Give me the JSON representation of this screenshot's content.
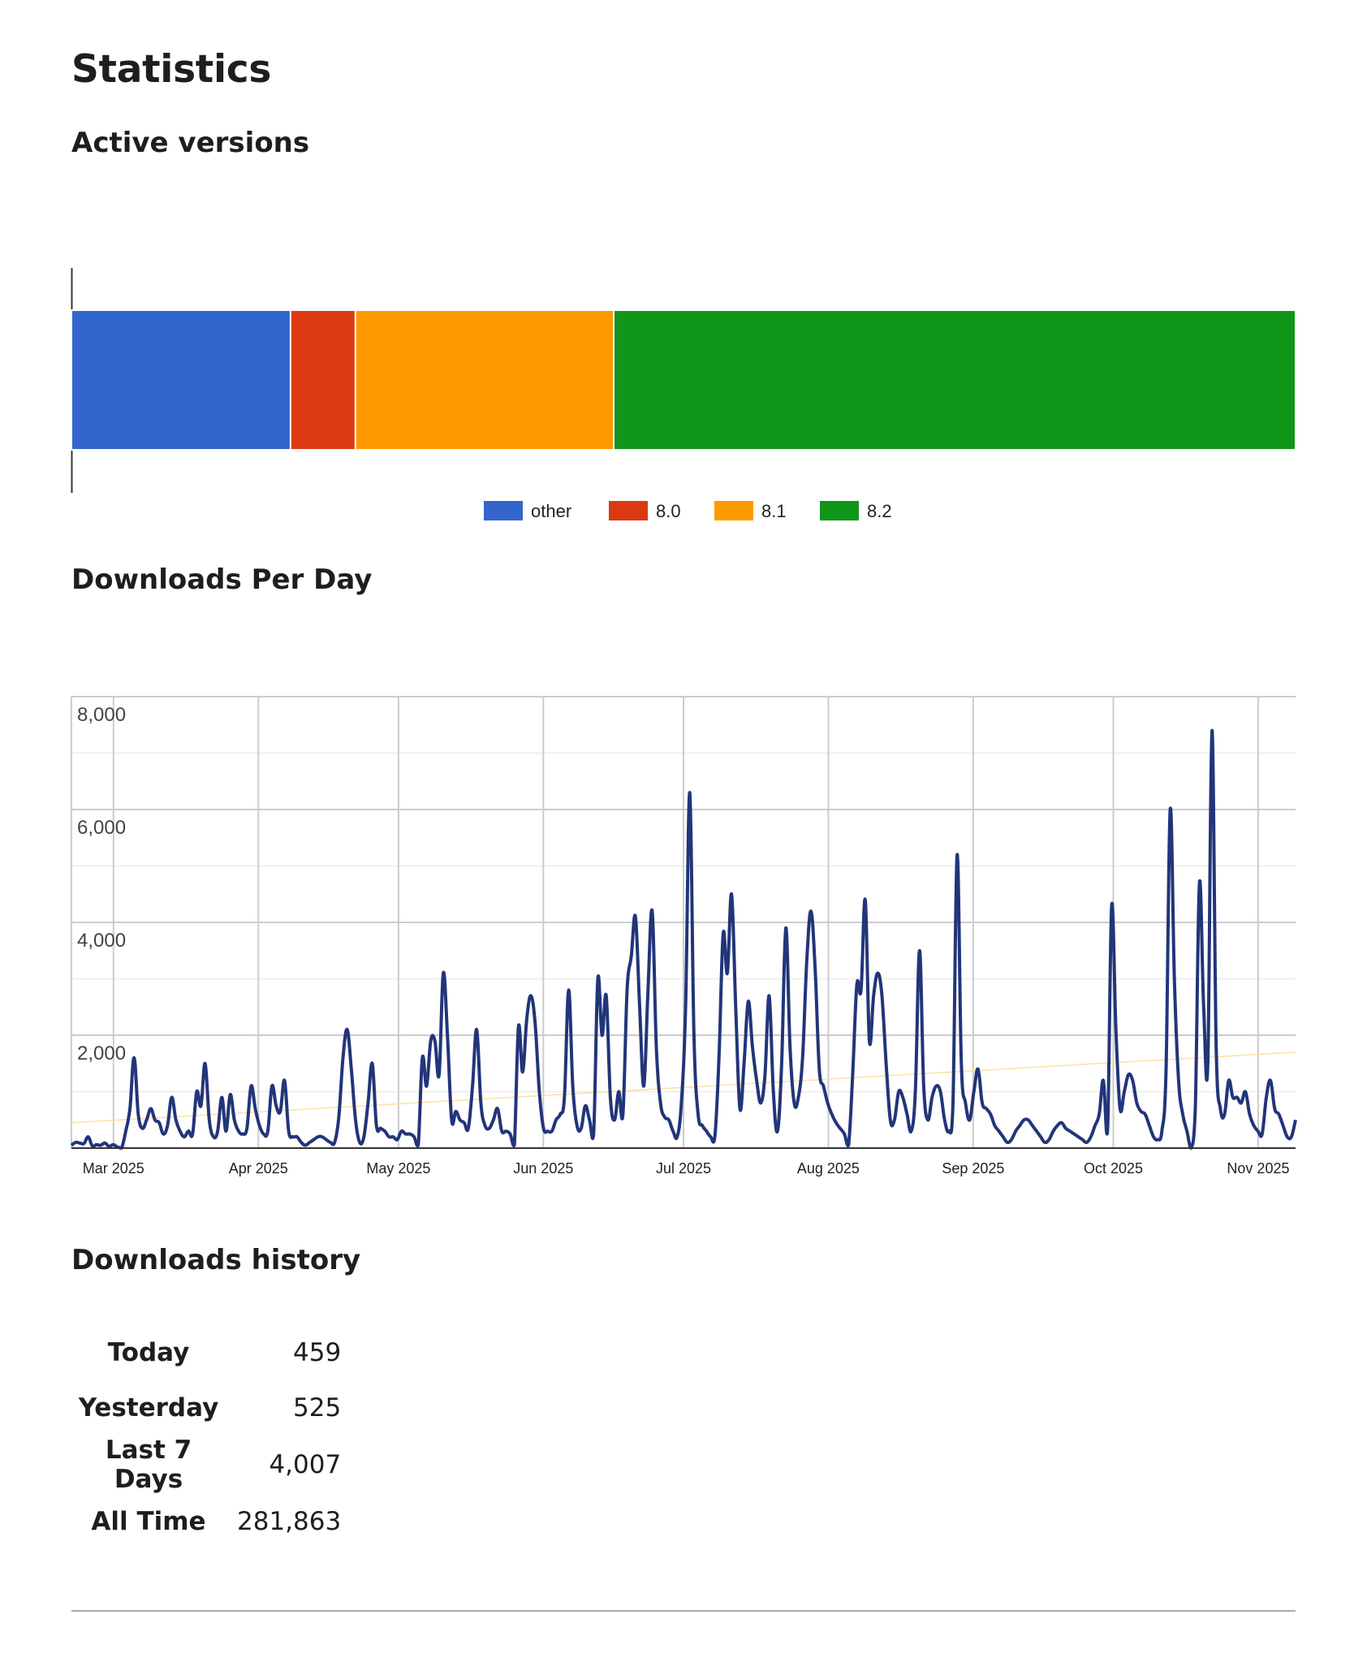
{
  "page": {
    "title": "Statistics"
  },
  "sections": {
    "versions_title": "Active versions",
    "downloads_title": "Downloads Per Day",
    "history_title": "Downloads history"
  },
  "chart_data": [
    {
      "type": "bar",
      "stacked": true,
      "orientation": "horizontal",
      "title": "",
      "categories": [
        ""
      ],
      "series": [
        {
          "name": "other",
          "color": "#3366cc",
          "values": [
            17.9
          ]
        },
        {
          "name": "8.0",
          "color": "#dc3912",
          "values": [
            5.3
          ]
        },
        {
          "name": "8.1",
          "color": "#ff9900",
          "values": [
            21.1
          ]
        },
        {
          "name": "8.2",
          "color": "#109618",
          "values": [
            55.7
          ]
        }
      ],
      "xlim": [
        0,
        100
      ],
      "legend": "bottom",
      "grid": false
    },
    {
      "type": "line",
      "title": "",
      "xlabel": "",
      "ylabel": "",
      "x_start": "2025-02-20",
      "x_end": "2025-11-09",
      "xticks": [
        "Mar 2025",
        "Apr 2025",
        "May 2025",
        "Jun 2025",
        "Jul 2025",
        "Aug 2025",
        "Sep 2025",
        "Oct 2025",
        "Nov 2025"
      ],
      "xtick_dates": [
        "2025-03-01",
        "2025-04-01",
        "2025-05-01",
        "2025-06-01",
        "2025-07-01",
        "2025-08-01",
        "2025-09-01",
        "2025-10-01",
        "2025-11-01"
      ],
      "ylim": [
        0,
        8000
      ],
      "yticks": [
        2000,
        4000,
        6000,
        8000
      ],
      "ytick_labels": [
        "2,000",
        "4,000",
        "6,000",
        "8,000"
      ],
      "grid": true,
      "legend": "none",
      "line_color": "#22357a",
      "trend_color": "#ffe0a0",
      "series": [
        {
          "values": [
            50,
            100,
            90,
            80,
            200,
            40,
            60,
            50,
            90,
            30,
            60,
            20,
            0,
            300,
            700,
            1600,
            600,
            350,
            500,
            700,
            500,
            450,
            250,
            400,
            900,
            500,
            300,
            200,
            300,
            250,
            1000,
            750,
            1500,
            500,
            200,
            300,
            900,
            300,
            950,
            500,
            300,
            250,
            350,
            1100,
            700,
            400,
            250,
            300,
            1100,
            750,
            650,
            1200,
            300,
            200,
            200,
            100,
            50,
            100,
            150,
            200,
            200,
            150,
            100,
            100,
            550,
            1600,
            2100,
            1400,
            500,
            100,
            200,
            800,
            1500,
            400,
            350,
            300,
            200,
            200,
            150,
            300,
            250,
            250,
            200,
            50,
            1600,
            1100,
            1900,
            1900,
            1300,
            3100,
            2000,
            500,
            650,
            500,
            450,
            350,
            1100,
            2100,
            800,
            400,
            350,
            500,
            700,
            300,
            300,
            250,
            50,
            2150,
            1350,
            2300,
            2700,
            2200,
            1000,
            350,
            300,
            300,
            500,
            600,
            900,
            2800,
            1100,
            400,
            350,
            750,
            500,
            250,
            3000,
            2000,
            2700,
            900,
            500,
            1000,
            600,
            2800,
            3400,
            4100,
            2500,
            1100,
            2800,
            4200,
            1800,
            800,
            550,
            500,
            300,
            200,
            800,
            2500,
            6300,
            2000,
            600,
            400,
            300,
            200,
            200,
            1600,
            3800,
            3100,
            4500,
            2500,
            700,
            1500,
            2600,
            1800,
            1200,
            800,
            1300,
            2700,
            1000,
            300,
            1500,
            3900,
            1800,
            800,
            900,
            1600,
            3300,
            4200,
            3200,
            1400,
            1100,
            800,
            600,
            450,
            350,
            250,
            50,
            1300,
            2900,
            2800,
            4400,
            1900,
            2700,
            3100,
            2700,
            1500,
            500,
            500,
            1000,
            900,
            600,
            300,
            1000,
            3500,
            1100,
            500,
            900,
            1100,
            1000,
            500,
            300,
            800,
            5200,
            1500,
            800,
            500,
            1000,
            1400,
            800,
            700,
            600,
            400,
            300,
            200,
            100,
            150,
            300,
            400,
            500,
            500,
            400,
            300,
            200,
            100,
            150,
            300,
            400,
            450,
            350,
            300,
            250,
            200,
            150,
            100,
            200,
            400,
            600,
            1200,
            300,
            4300,
            2100,
            700,
            1000,
            1300,
            1200,
            800,
            650,
            600,
            400,
            200,
            150,
            300,
            1400,
            6000,
            3000,
            1200,
            600,
            300,
            0,
            700,
            4700,
            2500,
            1500,
            7400,
            1800,
            700,
            600,
            1200,
            900,
            900,
            800,
            1000,
            600,
            400,
            300,
            250,
            900,
            1200,
            700,
            600,
            400,
            200,
            200,
            500
          ]
        }
      ],
      "trend": {
        "start": 450,
        "end": 1700
      }
    }
  ],
  "history": {
    "rows": [
      {
        "label": "Today",
        "value": "459"
      },
      {
        "label": "Yesterday",
        "value": "525"
      },
      {
        "label": "Last 7 Days",
        "value": "4,007"
      },
      {
        "label": "All Time",
        "value": "281,863"
      }
    ]
  }
}
